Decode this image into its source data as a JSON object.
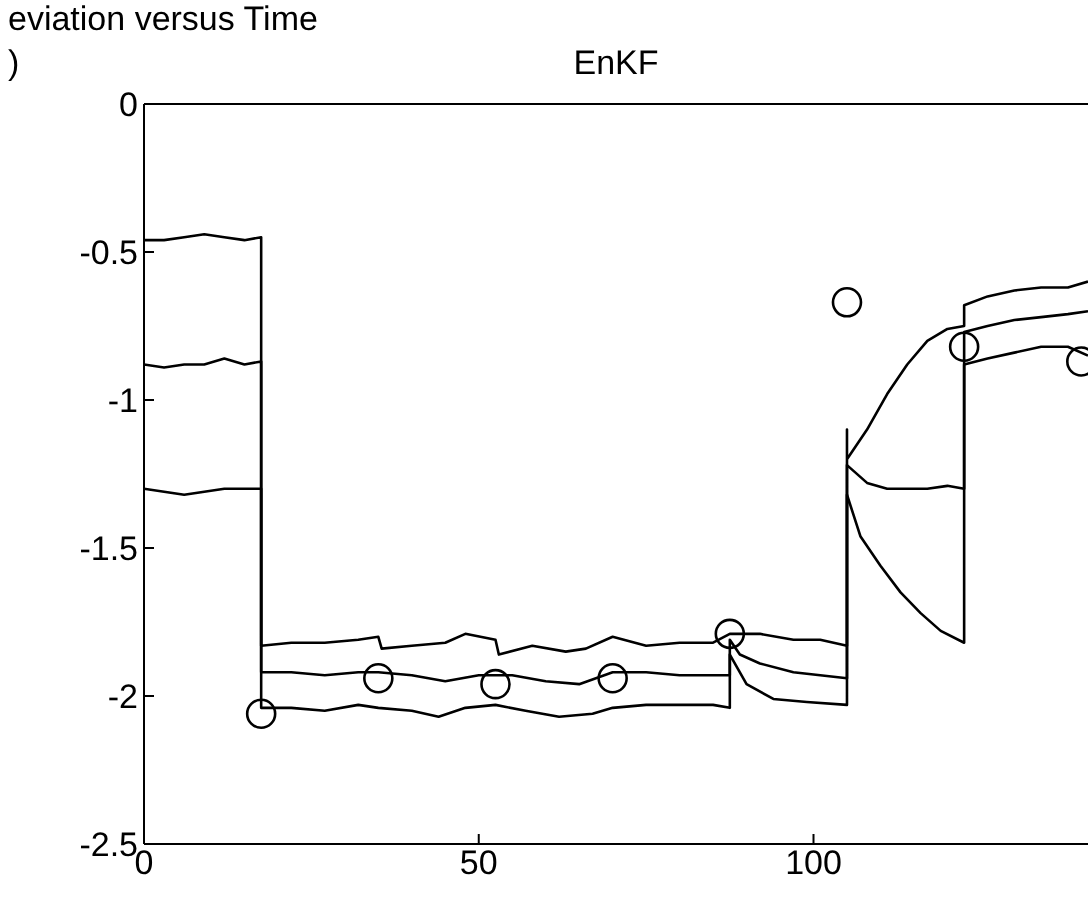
{
  "chart_data": {
    "type": "line",
    "title": "eviation versus Time",
    "subtitle": "EnKF",
    "annotations": [
      ")"
    ],
    "xlim": [
      0,
      141
    ],
    "xticks": [
      0,
      50,
      100
    ],
    "ylim": [
      -2.5,
      0
    ],
    "yticks": [
      0,
      -0.5,
      -1,
      -1.5,
      -2,
      -2.5
    ],
    "marker": "none",
    "line_style": "solid",
    "series": [
      {
        "color": "#000000",
        "x": [
          0,
          3,
          6,
          9,
          12,
          15,
          17.5,
          17.5,
          22,
          27,
          32,
          35,
          35.5,
          40,
          45,
          48,
          52.5,
          53,
          58,
          63,
          66,
          70,
          75,
          80,
          85,
          87.5,
          88,
          92,
          97,
          101,
          105,
          105,
          105,
          108,
          111,
          114,
          117,
          120,
          122.5,
          122.5,
          126,
          130,
          134,
          138,
          141
        ],
        "values": [
          -0.46,
          -0.46,
          -0.45,
          -0.44,
          -0.45,
          -0.46,
          -0.45,
          -1.83,
          -1.82,
          -1.82,
          -1.81,
          -1.8,
          -1.84,
          -1.83,
          -1.82,
          -1.79,
          -1.81,
          -1.86,
          -1.83,
          -1.85,
          -1.84,
          -1.8,
          -1.83,
          -1.82,
          -1.82,
          -1.79,
          -1.79,
          -1.79,
          -1.81,
          -1.81,
          -1.83,
          -1.1,
          -1.2,
          -1.1,
          -0.98,
          -0.88,
          -0.8,
          -0.76,
          -0.75,
          -0.68,
          -0.65,
          -0.63,
          -0.62,
          -0.62,
          -0.6
        ]
      },
      {
        "color": "#000000",
        "x": [
          0,
          3,
          6,
          9,
          12,
          15,
          17.5,
          17.5,
          22,
          27,
          32,
          35,
          40,
          45,
          50,
          55,
          60,
          65,
          70,
          75,
          80,
          85,
          87.5,
          87.5,
          89,
          92,
          97,
          101,
          105,
          105,
          108,
          111,
          114,
          117,
          120,
          122.5,
          122.5,
          126,
          130,
          134,
          138,
          141
        ],
        "values": [
          -0.88,
          -0.89,
          -0.88,
          -0.88,
          -0.86,
          -0.88,
          -0.87,
          -1.92,
          -1.92,
          -1.93,
          -1.92,
          -1.92,
          -1.93,
          -1.95,
          -1.93,
          -1.93,
          -1.95,
          -1.96,
          -1.92,
          -1.92,
          -1.93,
          -1.93,
          -1.93,
          -1.81,
          -1.86,
          -1.89,
          -1.92,
          -1.93,
          -1.94,
          -1.22,
          -1.28,
          -1.3,
          -1.3,
          -1.3,
          -1.29,
          -1.3,
          -0.77,
          -0.75,
          -0.73,
          -0.72,
          -0.71,
          -0.7
        ]
      },
      {
        "color": "#000000",
        "x": [
          0,
          3,
          6,
          9,
          12,
          15,
          17.5,
          17.5,
          22,
          27,
          32,
          35,
          40,
          44,
          48,
          52.5,
          57,
          62,
          67,
          70,
          75,
          80,
          85,
          87.5,
          87.5,
          90,
          94,
          99,
          105,
          105,
          107,
          110,
          113,
          116,
          119,
          122.5,
          122.5,
          126,
          130,
          134,
          138,
          141
        ],
        "values": [
          -1.3,
          -1.31,
          -1.32,
          -1.31,
          -1.3,
          -1.3,
          -1.3,
          -2.04,
          -2.04,
          -2.05,
          -2.03,
          -2.04,
          -2.05,
          -2.07,
          -2.04,
          -2.03,
          -2.05,
          -2.07,
          -2.06,
          -2.04,
          -2.03,
          -2.03,
          -2.03,
          -2.04,
          -1.86,
          -1.96,
          -2.01,
          -2.02,
          -2.03,
          -1.32,
          -1.46,
          -1.56,
          -1.65,
          -1.72,
          -1.78,
          -1.82,
          -0.88,
          -0.86,
          -0.84,
          -0.82,
          -0.82,
          -0.85
        ]
      },
      {
        "type": "scatter",
        "color": "#000000",
        "marker": "circle",
        "x": [
          17.5,
          35,
          52.5,
          70,
          87.5,
          105,
          122.5,
          140
        ],
        "values": [
          -2.06,
          -1.94,
          -1.96,
          -1.94,
          -1.79,
          -0.67,
          -0.82,
          -0.87
        ]
      }
    ]
  }
}
